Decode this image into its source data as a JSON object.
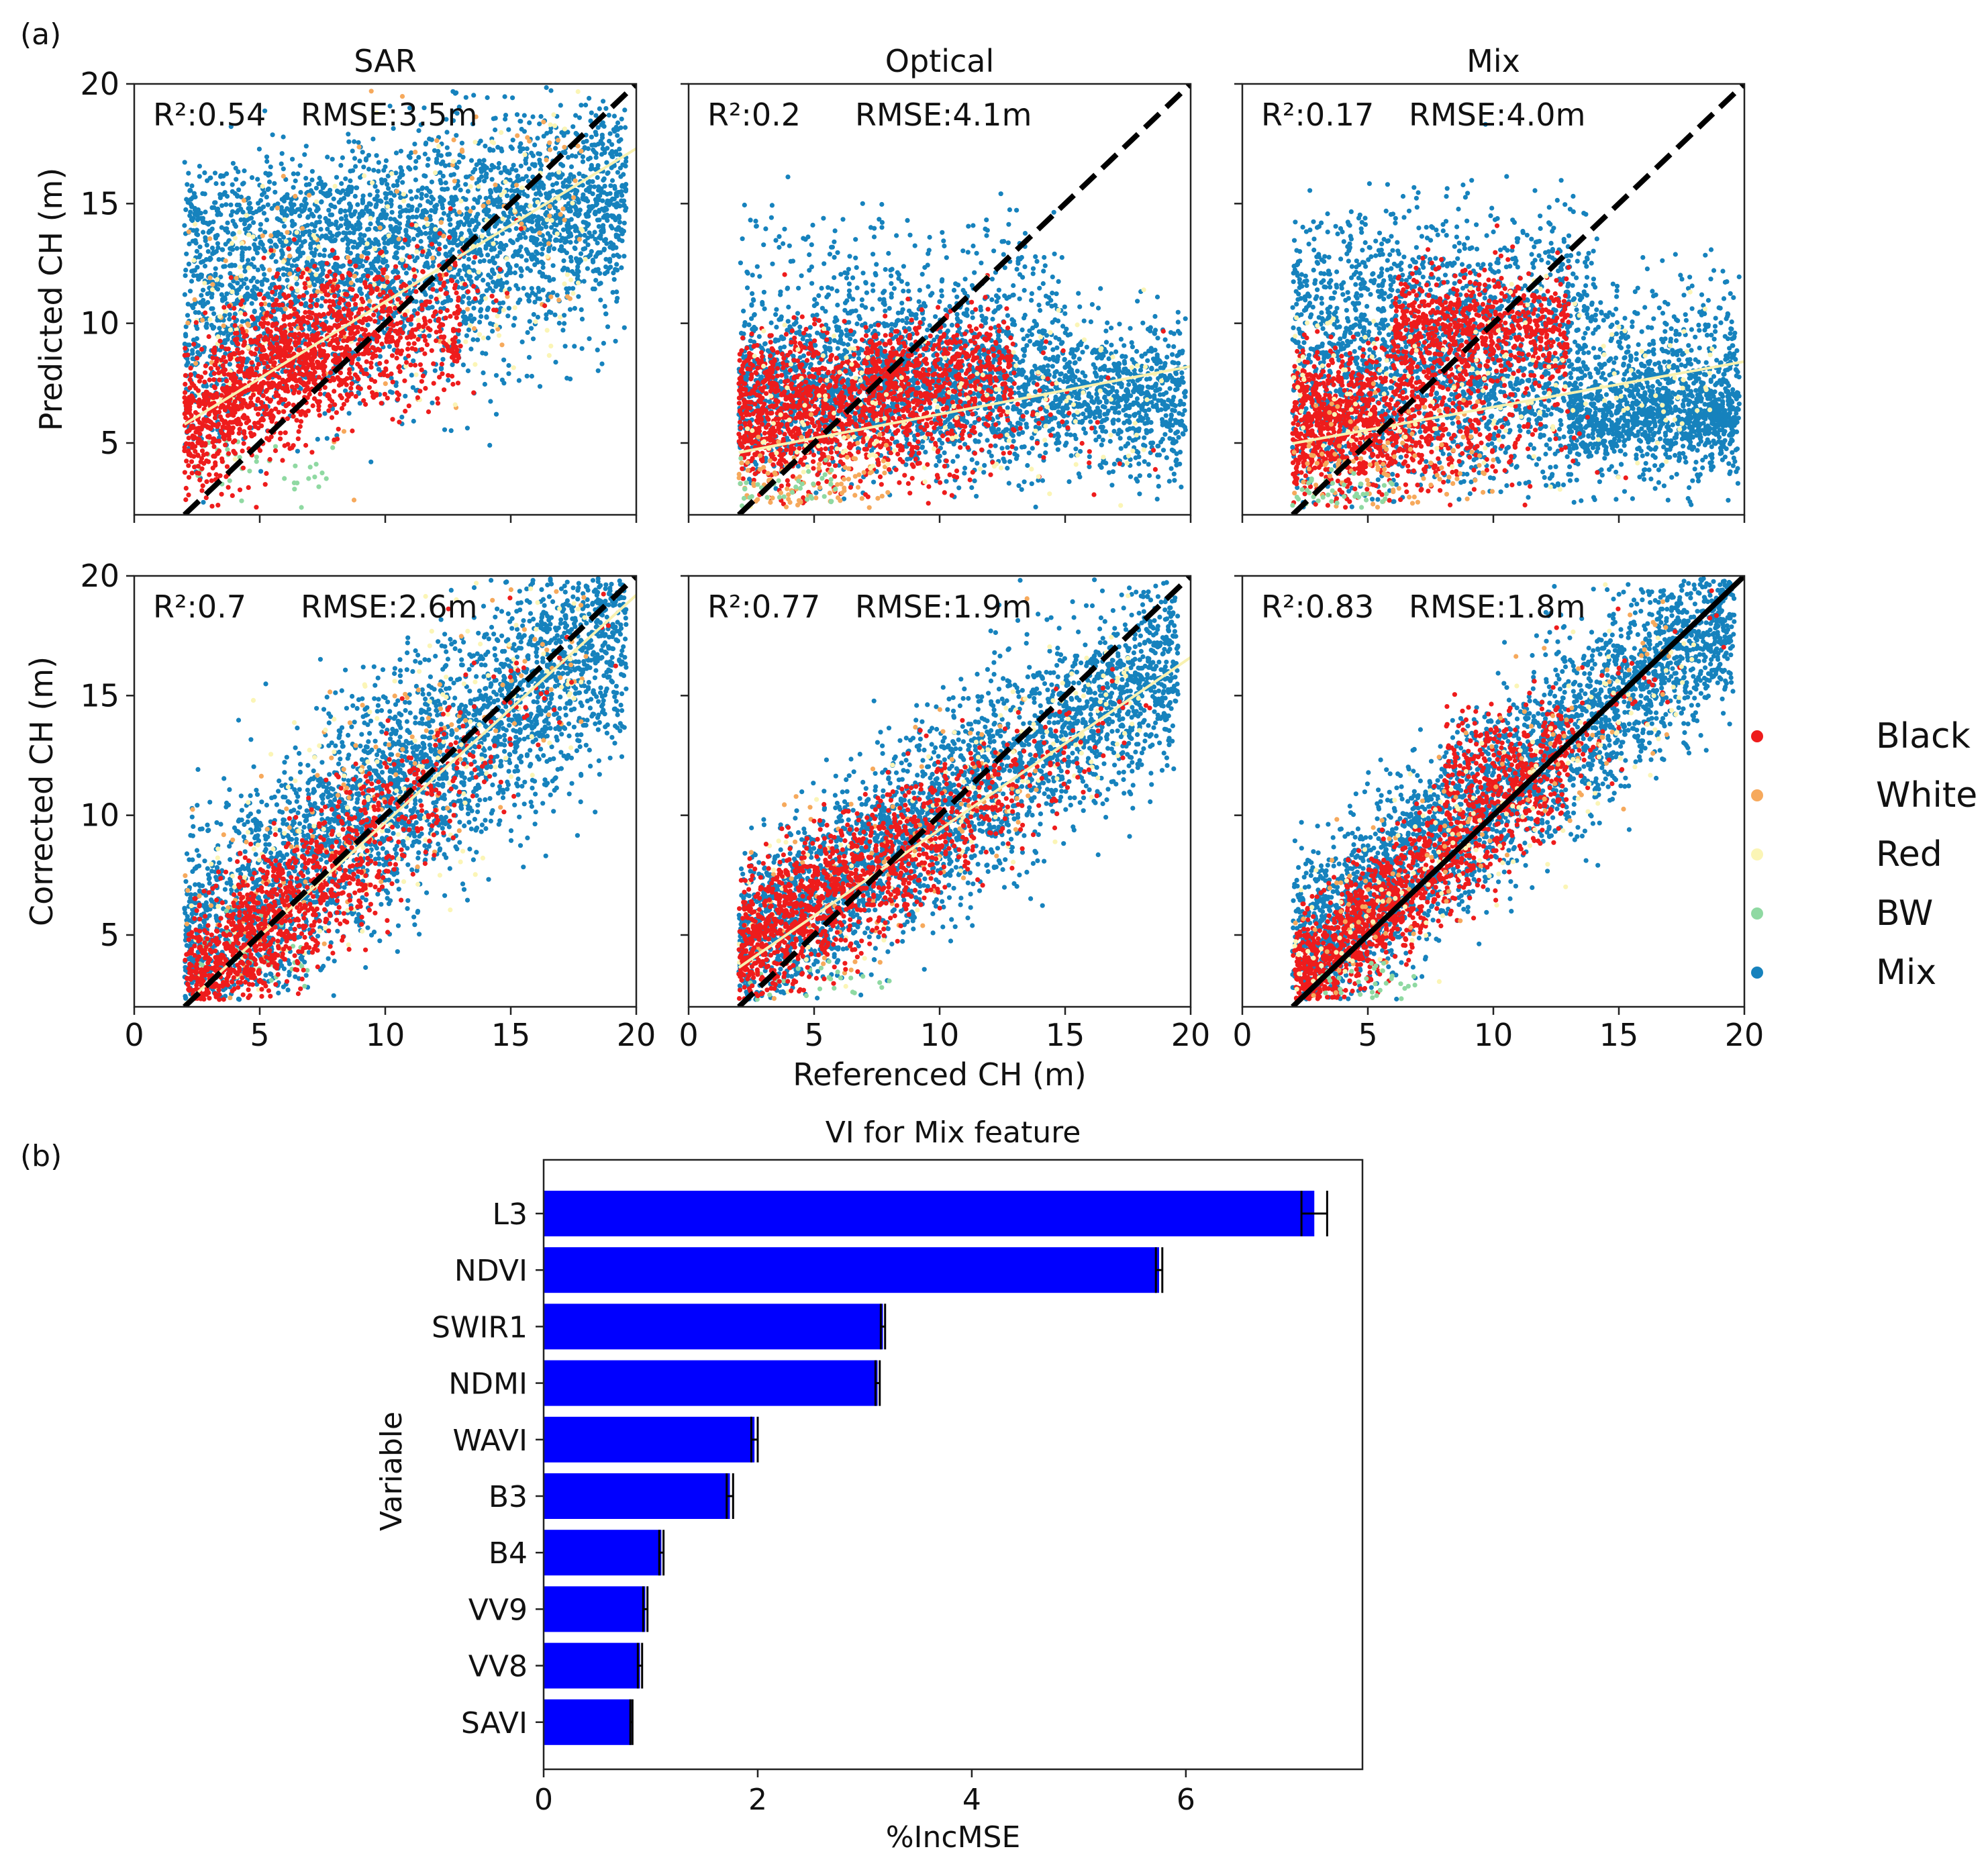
{
  "panel_labels": [
    "(a)",
    "(b)"
  ],
  "colors": {
    "Black": "#ee1c1c",
    "White": "#f6a95c",
    "Red": "#fbf5b6",
    "BW": "#8fd9a2",
    "Mix": "#1682bd",
    "bar": "#0000ff",
    "identity_line": "#000000",
    "fit_line": "#f8f1b0"
  },
  "legend": {
    "entries": [
      "Black",
      "White",
      "Red",
      "BW",
      "Mix"
    ]
  },
  "scatter": {
    "col_titles": [
      "SAR",
      "Optical",
      "Mix"
    ],
    "row_ylabels": [
      "Predicted CH (m)",
      "Corrected CH (m)"
    ],
    "xlabel": "Referenced CH (m)"
  },
  "chart_data": [
    {
      "type": "scatter",
      "id": "sar_predicted",
      "title": "SAR",
      "ylabel": "Predicted CH (m)",
      "xlim": [
        0,
        20
      ],
      "ylim": [
        2,
        20
      ],
      "xticks": [
        0,
        5,
        10,
        15,
        20
      ],
      "yticks": [
        5,
        10,
        15,
        20
      ],
      "r2": "R²:0.54",
      "rmse": "RMSE:3.5m",
      "fit": {
        "slope": 0.64,
        "intercept": 4.5
      },
      "series": [
        "Black",
        "White",
        "Red",
        "BW",
        "Mix"
      ]
    },
    {
      "type": "scatter",
      "id": "optical_predicted",
      "title": "Optical",
      "xlim": [
        0,
        20
      ],
      "ylim": [
        2,
        20
      ],
      "xticks": [
        0,
        5,
        10,
        15,
        20
      ],
      "yticks": [
        5,
        10,
        15,
        20
      ],
      "r2": "R²:0.2",
      "rmse": "RMSE:4.1m",
      "fit": {
        "slope": 0.2,
        "intercept": 4.2
      },
      "series": [
        "Black",
        "White",
        "Red",
        "BW",
        "Mix"
      ]
    },
    {
      "type": "scatter",
      "id": "mix_predicted",
      "title": "Mix",
      "xlim": [
        0,
        20
      ],
      "ylim": [
        2,
        20
      ],
      "xticks": [
        0,
        5,
        10,
        15,
        20
      ],
      "yticks": [
        5,
        10,
        15,
        20
      ],
      "r2": "R²:0.17",
      "rmse": "RMSE:4.0m",
      "fit": {
        "slope": 0.19,
        "intercept": 4.6
      },
      "series": [
        "Black",
        "White",
        "Red",
        "BW",
        "Mix"
      ]
    },
    {
      "type": "scatter",
      "id": "sar_corrected",
      "ylabel": "Corrected CH (m)",
      "xlim": [
        0,
        20
      ],
      "ylim": [
        2,
        20
      ],
      "xticks": [
        0,
        5,
        10,
        15,
        20
      ],
      "yticks": [
        5,
        10,
        15,
        20
      ],
      "r2": "R²:0.7",
      "rmse": "RMSE:2.6m",
      "fit": {
        "slope": 0.95,
        "intercept": 0.2
      },
      "series": [
        "Black",
        "White",
        "Red",
        "BW",
        "Mix"
      ]
    },
    {
      "type": "scatter",
      "id": "optical_corrected",
      "xlabel": "Referenced CH (m)",
      "xlim": [
        0,
        20
      ],
      "ylim": [
        2,
        20
      ],
      "xticks": [
        0,
        5,
        10,
        15,
        20
      ],
      "yticks": [
        5,
        10,
        15,
        20
      ],
      "r2": "R²:0.77",
      "rmse": "RMSE:1.9m",
      "fit": {
        "slope": 0.72,
        "intercept": 2.2
      },
      "series": [
        "Black",
        "White",
        "Red",
        "BW",
        "Mix"
      ]
    },
    {
      "type": "scatter",
      "id": "mix_corrected",
      "xlim": [
        0,
        20
      ],
      "ylim": [
        2,
        20
      ],
      "xticks": [
        0,
        5,
        10,
        15,
        20
      ],
      "yticks": [
        5,
        10,
        15,
        20
      ],
      "r2": "R²:0.83",
      "rmse": "RMSE:1.8m",
      "fit": {
        "slope": 1.0,
        "intercept": 0.0
      },
      "series": [
        "Black",
        "White",
        "Red",
        "BW",
        "Mix"
      ]
    },
    {
      "type": "bar",
      "id": "vi_mix_feature",
      "orientation": "horizontal",
      "title": "VI for Mix feature",
      "xlabel": "%IncMSE",
      "ylabel": "Variable",
      "xlim": [
        0,
        7.65
      ],
      "xticks": [
        0,
        2,
        4,
        6
      ],
      "categories": [
        "L3",
        "NDVI",
        "SWIR1",
        "NDMI",
        "WAVI",
        "B3",
        "B4",
        "VV9",
        "VV8",
        "SAVI"
      ],
      "values": [
        7.2,
        5.75,
        3.17,
        3.12,
        1.97,
        1.74,
        1.1,
        0.95,
        0.9,
        0.82
      ],
      "errors": [
        0.12,
        0.03,
        0.02,
        0.02,
        0.03,
        0.03,
        0.02,
        0.02,
        0.02,
        0.01
      ]
    }
  ]
}
